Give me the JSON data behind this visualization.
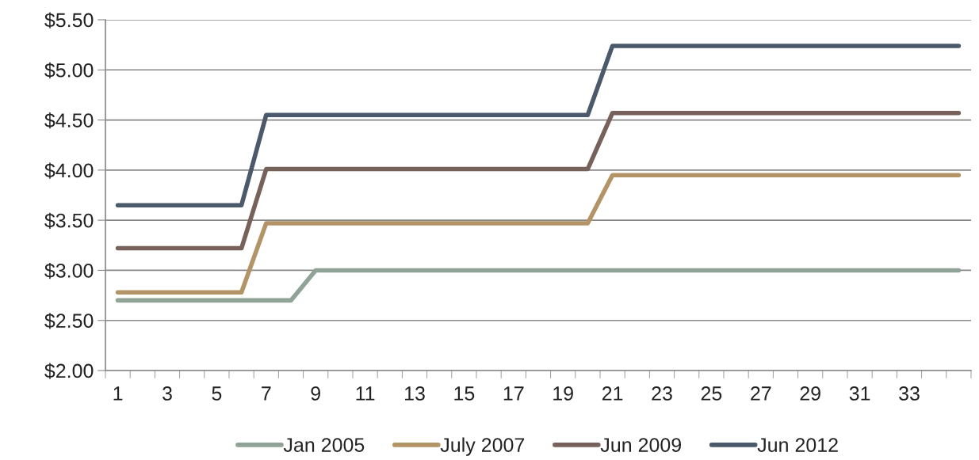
{
  "chart_data": {
    "type": "line",
    "categories": [
      "1",
      null,
      "3",
      null,
      "5",
      null,
      "7",
      null,
      "9",
      null,
      "11",
      null,
      "13",
      null,
      "15",
      null,
      "17",
      null,
      "19",
      null,
      "21",
      null,
      "23",
      null,
      "25",
      null,
      "27",
      null,
      "29",
      null,
      "31",
      null,
      "33",
      null,
      null
    ],
    "series": [
      {
        "name": "Jan 2005",
        "color": "#8fa396",
        "values": [
          2.7,
          2.7,
          2.7,
          2.7,
          2.7,
          2.7,
          2.7,
          2.7,
          3.0,
          3.0,
          3.0,
          3.0,
          3.0,
          3.0,
          3.0,
          3.0,
          3.0,
          3.0,
          3.0,
          3.0,
          3.0,
          3.0,
          3.0,
          3.0,
          3.0,
          3.0,
          3.0,
          3.0,
          3.0,
          3.0,
          3.0,
          3.0,
          3.0,
          3.0,
          3.0
        ]
      },
      {
        "name": "July 2007",
        "color": "#b39466",
        "values": [
          2.78,
          2.78,
          2.78,
          2.78,
          2.78,
          2.78,
          3.47,
          3.47,
          3.47,
          3.47,
          3.47,
          3.47,
          3.47,
          3.47,
          3.47,
          3.47,
          3.47,
          3.47,
          3.47,
          3.47,
          3.95,
          3.95,
          3.95,
          3.95,
          3.95,
          3.95,
          3.95,
          3.95,
          3.95,
          3.95,
          3.95,
          3.95,
          3.95,
          3.95,
          3.95
        ]
      },
      {
        "name": "Jun 2009",
        "color": "#76625a",
        "values": [
          3.22,
          3.22,
          3.22,
          3.22,
          3.22,
          3.22,
          4.01,
          4.01,
          4.01,
          4.01,
          4.01,
          4.01,
          4.01,
          4.01,
          4.01,
          4.01,
          4.01,
          4.01,
          4.01,
          4.01,
          4.57,
          4.57,
          4.57,
          4.57,
          4.57,
          4.57,
          4.57,
          4.57,
          4.57,
          4.57,
          4.57,
          4.57,
          4.57,
          4.57,
          4.57
        ]
      },
      {
        "name": "Jun 2012",
        "color": "#4b5a6b",
        "values": [
          3.65,
          3.65,
          3.65,
          3.65,
          3.65,
          3.65,
          4.55,
          4.55,
          4.55,
          4.55,
          4.55,
          4.55,
          4.55,
          4.55,
          4.55,
          4.55,
          4.55,
          4.55,
          4.55,
          4.55,
          5.24,
          5.24,
          5.24,
          5.24,
          5.24,
          5.24,
          5.24,
          5.24,
          5.24,
          5.24,
          5.24,
          5.24,
          5.24,
          5.24,
          5.24
        ]
      }
    ],
    "ylim": [
      2.0,
      5.5
    ],
    "yticks": [
      {
        "value": 2.0,
        "label": "$2.00"
      },
      {
        "value": 2.5,
        "label": "$2.50"
      },
      {
        "value": 3.0,
        "label": "$3.00"
      },
      {
        "value": 3.5,
        "label": "$3.50"
      },
      {
        "value": 4.0,
        "label": "$4.00"
      },
      {
        "value": 4.5,
        "label": "$4.50"
      },
      {
        "value": 5.0,
        "label": "$5.00"
      },
      {
        "value": 5.5,
        "label": "$5.50"
      }
    ],
    "grid": "y",
    "legend": "bottom",
    "marker": "none",
    "line_style": "solid"
  }
}
